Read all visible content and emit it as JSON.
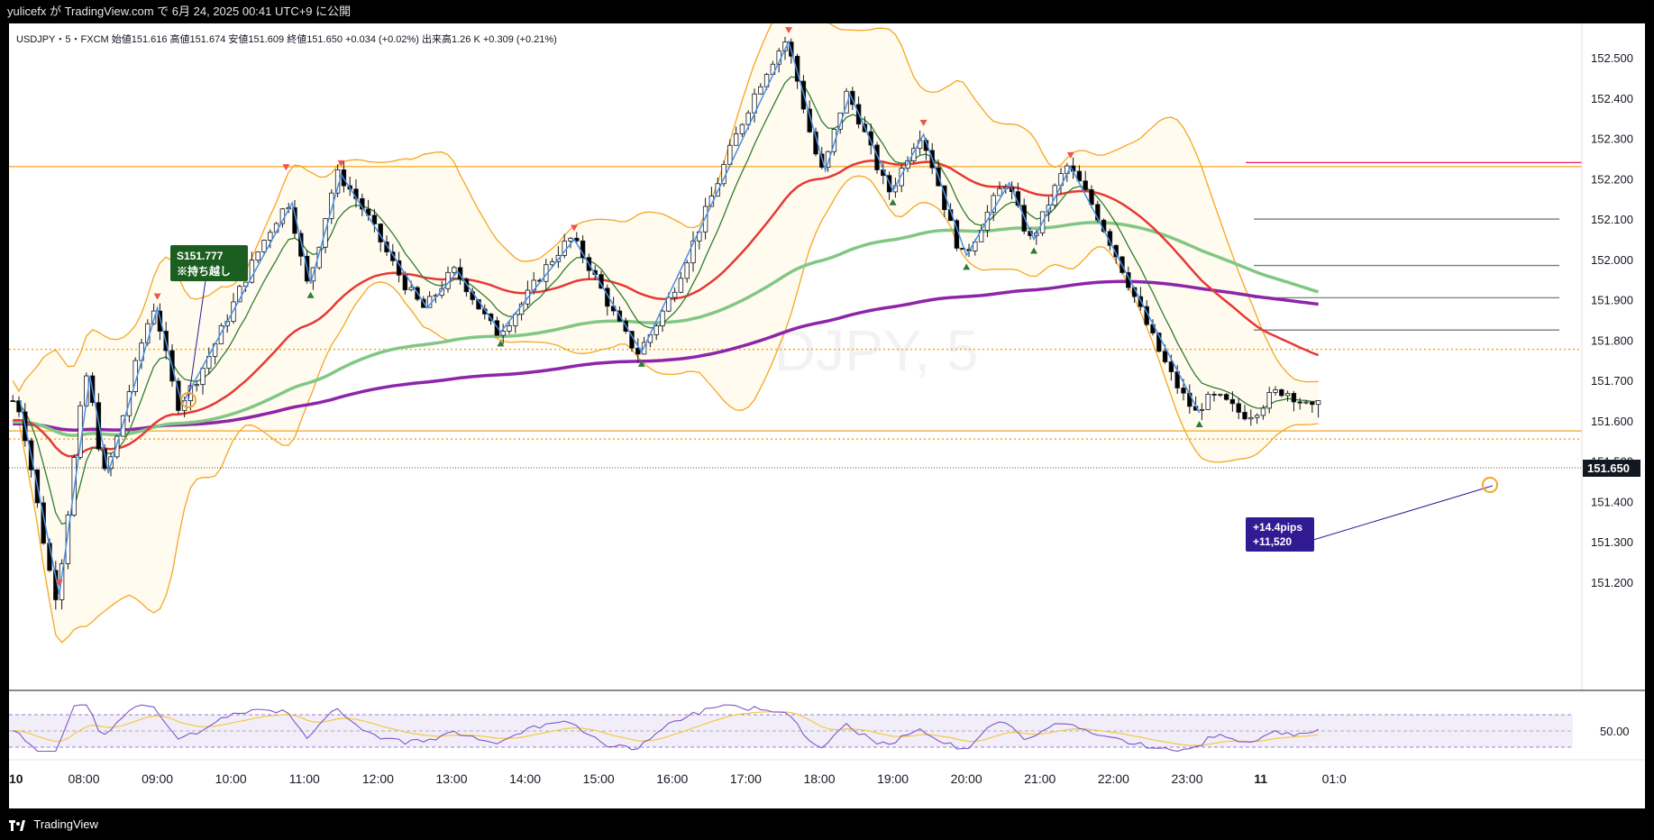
{
  "header": {
    "publisher_line": "yulicefx が TradingView.com で 6月 24, 2025 00:41 UTC+9 に公開"
  },
  "symbol_bar": {
    "text": "USDJPY・5・FXCM 始値151.616 高値151.674 安値151.609 終値151.650 +0.034 (+0.02%) 出来高1.26 K +0.309 (+0.21%)"
  },
  "annotations": {
    "sell_label_line1": "S151.777",
    "sell_label_line2": "※持ち越し",
    "profit_line1": "+14.4pips",
    "profit_line2": "+11,520",
    "current_price": "151.650",
    "rsi_level": "50.00",
    "watermark": "USDJPY, 5"
  },
  "footer": {
    "brand": "TradingView"
  },
  "colors": {
    "bull": "#ffffff",
    "bear": "#000000",
    "bb_band": "#f5a623",
    "bb_fill": "#fffbee",
    "ema_fast": "#2e7d32",
    "ema_mid": "#e53935",
    "ema_slow": "#81c784",
    "ema_long": "#8e24aa",
    "zigzag": "#4a90e2",
    "label_green": "#1b5e20",
    "label_indigo": "#311b92",
    "resistance": "#f5a623"
  },
  "chart_data": {
    "type": "candlestick",
    "symbol": "USDJPY",
    "timeframe": "5",
    "source": "FXCM",
    "y_ticks": [
      "152.500",
      "152.400",
      "152.300",
      "152.200",
      "152.100",
      "152.000",
      "151.900",
      "151.800",
      "151.700",
      "151.600",
      "151.500",
      "151.400",
      "151.300",
      "151.200"
    ],
    "ylim": [
      151.17,
      152.57
    ],
    "x_ticks": [
      "10",
      "08:00",
      "09:00",
      "10:00",
      "11:00",
      "12:00",
      "13:00",
      "14:00",
      "15:00",
      "16:00",
      "17:00",
      "18:00",
      "19:00",
      "20:00",
      "21:00",
      "22:00",
      "23:00",
      "11",
      "01:0"
    ],
    "last_price": 151.65,
    "horizontal_lines": [
      {
        "price": 152.23,
        "style": "solid",
        "color": "#f5a623"
      },
      {
        "price": 151.777,
        "style": "dotted",
        "color": "#f5a623"
      },
      {
        "price": 151.575,
        "style": "solid",
        "color": "#f5a623"
      },
      {
        "price": 151.555,
        "style": "dotted",
        "color": "#f5a623"
      },
      {
        "price": 152.24,
        "style": "solid",
        "color": "#e91e63"
      },
      {
        "price": 152.1,
        "style": "solid",
        "color": "#787b86"
      },
      {
        "price": 151.985,
        "style": "solid",
        "color": "#787b86"
      },
      {
        "price": 151.905,
        "style": "solid",
        "color": "#787b86"
      },
      {
        "price": 151.825,
        "style": "solid",
        "color": "#787b86"
      }
    ],
    "zigzag": [
      {
        "t": "07:08",
        "p": 151.65
      },
      {
        "t": "07:40",
        "p": 151.17
      },
      {
        "t": "08:05",
        "p": 151.71
      },
      {
        "t": "08:20",
        "p": 151.47
      },
      {
        "t": "09:00",
        "p": 151.88
      },
      {
        "t": "09:20",
        "p": 151.64
      },
      {
        "t": "10:50",
        "p": 152.14
      },
      {
        "t": "11:05",
        "p": 151.94
      },
      {
        "t": "11:30",
        "p": 152.21
      },
      {
        "t": "12:40",
        "p": 151.88
      },
      {
        "t": "13:05",
        "p": 151.97
      },
      {
        "t": "13:40",
        "p": 151.82
      },
      {
        "t": "14:40",
        "p": 152.05
      },
      {
        "t": "15:35",
        "p": 151.77
      },
      {
        "t": "17:35",
        "p": 152.54
      },
      {
        "t": "18:05",
        "p": 152.22
      },
      {
        "t": "18:25",
        "p": 152.41
      },
      {
        "t": "19:00",
        "p": 152.17
      },
      {
        "t": "19:25",
        "p": 152.31
      },
      {
        "t": "20:00",
        "p": 152.01
      },
      {
        "t": "20:35",
        "p": 152.19
      },
      {
        "t": "20:55",
        "p": 152.05
      },
      {
        "t": "21:25",
        "p": 152.23
      },
      {
        "t": "23:10",
        "p": 151.62
      }
    ],
    "fractal_highs": [
      "07:40",
      "09:00",
      "10:45",
      "11:30",
      "14:40",
      "17:35",
      "19:25",
      "21:25"
    ],
    "fractal_lows": [
      "11:05",
      "13:40",
      "15:35",
      "19:00",
      "20:00",
      "20:55",
      "23:10"
    ],
    "rsi": {
      "level": 50.0,
      "upper": 70,
      "lower": 30
    }
  }
}
